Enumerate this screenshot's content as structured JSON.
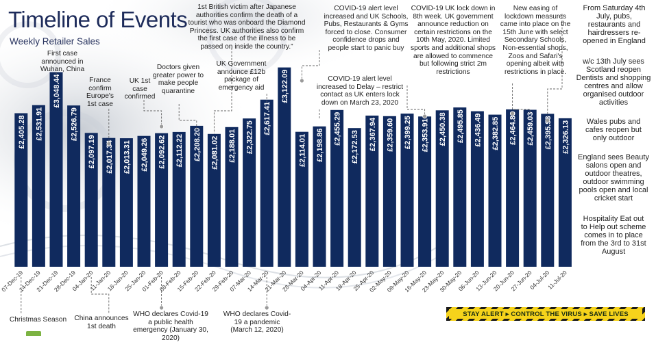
{
  "title": "Timeline of Events",
  "subtitle": "Weekly Retailer Sales",
  "colors": {
    "bar": "#102a5e",
    "bar_text": "#ffffff",
    "title": "#1d2b5a",
    "dash_line": "#666666",
    "banner_bg": "#f6d31b",
    "banner_stripe": "#1a1a1a"
  },
  "banner": {
    "text": "STAY ALERT ▸ CONTROL THE VIRUS ▸ SAVE LIVES"
  },
  "annotations": {
    "first_case": "First case announced in Wuhan, China",
    "france": "France confirm Europe's 1st case",
    "uk_first": "UK 1st case confirmed",
    "doctors": "Doctors given greater power to make people quarantine",
    "british_victim": "1st British victim after Japanese authorities confirm the death of a tourist who was onboard the Diamond Princess. UK authorities also confirm the first case of the illness to be passed on inside the country.”",
    "uk_gov": "UK Government announce £12b package of emergency aid",
    "alert_increase": "COVID-19 alert level increased and UK Schools, Pubs, Restaurants & Gyms forced to close. Consumer confidence drops and people start to panic buy",
    "alert_delay": "COVID-19 alert level increased to Delay – restrict contact as UK enters lock down on March 23, 2020",
    "lockdown_8th": "COVID-19 UK lock down in 8th week. UK government announce reduction on certain restrictions on the 10th May, 2020. Limited sports and additional shops are allowed to commence but following strict 2m restrictions",
    "new_easing": "New easing of lockdown measures came into place on the 15th June with select Secondary Schools, Non-essential shops, Zoos and Safari's opening albeit with restrictions in place.",
    "from_july": "From Saturday 4th July, pubs, restaurants and hairdressers re-opened in England",
    "scotland": "w/c 13th July sees Scotland reopen Dentists and shopping centres and allow organised outdoor activities",
    "wales": "Wales pubs and cafes reopen but only outdoor",
    "england_beauty": "England sees Beauty salons open and outdoor theatres, outdoor swimming pools open and local cricket start",
    "eat_out": "Hospitality Eat out to Help out scheme comes in to place from the 3rd to 31st August",
    "christmas": "Christmas Season",
    "china_death": "China announces 1st death",
    "who_emergency": "WHO declares Covid-19 a public health emergency (January 30, 2020)",
    "who_pandemic": "WHO declares Covid-19 a pandemic (March 12, 2020)"
  },
  "chart_data": {
    "type": "bar",
    "title": "Timeline of Events",
    "subtitle": "Weekly Retailer Sales",
    "ylim": [
      0,
      3300
    ],
    "grid": false,
    "categories": [
      "07-Dec-19",
      "14-Dec-19",
      "21-Dec-19",
      "28-Dec-19",
      "04-Jan-20",
      "11-Jan-20",
      "18-Jan-20",
      "25-Jan-20",
      "01-Feb-20",
      "08-Feb-20",
      "15-Feb-20",
      "22-Feb-20",
      "29-Feb-20",
      "07-Mar-20",
      "14-Mar-20",
      "21-Mar-20",
      "28-Mar-20",
      "04-Apr-20",
      "11-Apr-20",
      "18-Apr-20",
      "25-Apr-20",
      "02-May-20",
      "09-May-20",
      "16-May-20",
      "23-May-20",
      "30-May-20",
      "06-Jun-20",
      "13-Jun-20",
      "20-Jun-20",
      "27-Jun-20",
      "04-Jul-20",
      "11-Jul-20"
    ],
    "values": [
      2405.28,
      2531.91,
      3048.44,
      2526.79,
      2097.19,
      2017.34,
      2013.31,
      2049.26,
      2092.62,
      2112.22,
      2208.2,
      2081.02,
      2188.01,
      2322.75,
      2617.41,
      3122.09,
      2114.01,
      2198.86,
      2455.29,
      2172.53,
      2367.94,
      2359.6,
      2399.25,
      2353.91,
      2450.38,
      2495.85,
      2436.49,
      2382.85,
      2464.83,
      2459.03,
      2395.93,
      2326.13
    ],
    "labels": [
      "£2,405.28",
      "£2,531.91",
      "£3,048.44",
      "£2,526.79",
      "£2,097.19",
      "£2,017.34",
      "£2,013.31",
      "£2,049.26",
      "£2,092.62",
      "£2,112.22",
      "£2,208.20",
      "£2,081.02",
      "£2,188.01",
      "£2,322.75",
      "£2,617.41",
      "£3,122.09",
      "£2,114.01",
      "£2,198.86",
      "£2,455.29",
      "£2,172.53",
      "£2,367.94",
      "£2,359.60",
      "£2,399.25",
      "£2,353.91",
      "£2,450.38",
      "£2,495.85",
      "£2,436.49",
      "£2,382.85",
      "£2,464.83",
      "£2,459.03",
      "£2,395.93",
      "£2,326.13"
    ]
  }
}
